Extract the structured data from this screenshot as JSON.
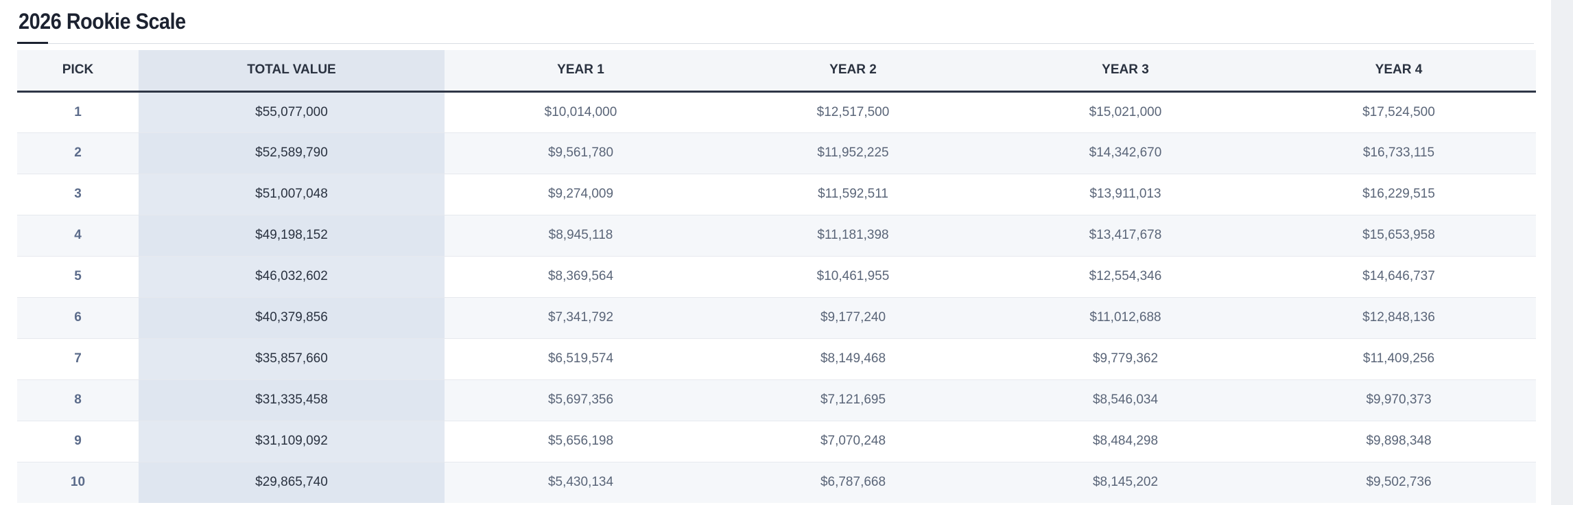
{
  "title": "2026 Rookie Scale",
  "columns": [
    "PICK",
    "TOTAL VALUE",
    "YEAR 1",
    "YEAR 2",
    "YEAR 3",
    "YEAR 4"
  ],
  "rows": [
    [
      "1",
      "$55,077,000",
      "$10,014,000",
      "$12,517,500",
      "$15,021,000",
      "$17,524,500"
    ],
    [
      "2",
      "$52,589,790",
      "$9,561,780",
      "$11,952,225",
      "$14,342,670",
      "$16,733,115"
    ],
    [
      "3",
      "$51,007,048",
      "$9,274,009",
      "$11,592,511",
      "$13,911,013",
      "$16,229,515"
    ],
    [
      "4",
      "$49,198,152",
      "$8,945,118",
      "$11,181,398",
      "$13,417,678",
      "$15,653,958"
    ],
    [
      "5",
      "$46,032,602",
      "$8,369,564",
      "$10,461,955",
      "$12,554,346",
      "$14,646,737"
    ],
    [
      "6",
      "$40,379,856",
      "$7,341,792",
      "$9,177,240",
      "$11,012,688",
      "$12,848,136"
    ],
    [
      "7",
      "$35,857,660",
      "$6,519,574",
      "$8,149,468",
      "$9,779,362",
      "$11,409,256"
    ],
    [
      "8",
      "$31,335,458",
      "$5,697,356",
      "$7,121,695",
      "$8,546,034",
      "$9,970,373"
    ],
    [
      "9",
      "$31,109,092",
      "$5,656,198",
      "$7,070,248",
      "$8,484,298",
      "$9,898,348"
    ],
    [
      "10",
      "$29,865,740",
      "$5,430,134",
      "$6,787,668",
      "$8,145,202",
      "$9,502,736"
    ]
  ]
}
